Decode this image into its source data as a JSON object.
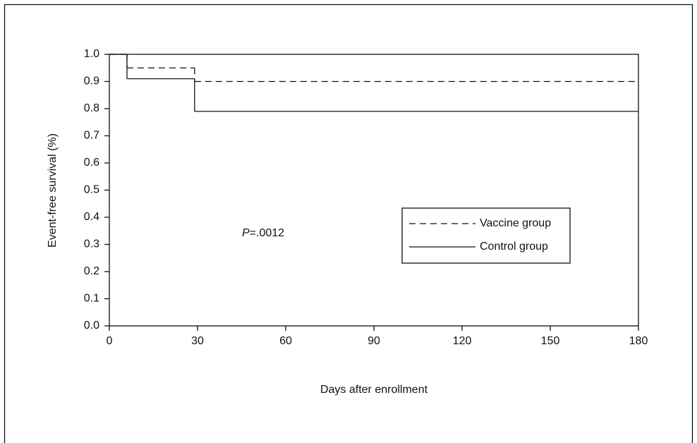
{
  "chart_data": {
    "type": "step",
    "x_label": "Days after enrollment",
    "y_label": "Event-free survival (%)",
    "annotation": {
      "italic": "P",
      "text": "=.0012"
    },
    "x": [
      0,
      6,
      29
    ],
    "series": [
      {
        "name": "Vaccine group",
        "color": "#000000",
        "dash": "dashed",
        "values": [
          1.0,
          0.95,
          0.9
        ]
      },
      {
        "name": "Control group",
        "color": "#000000",
        "dash": "solid",
        "values": [
          1.0,
          0.91,
          0.79
        ]
      }
    ],
    "xlim": [
      0,
      180
    ],
    "xticks": [
      0,
      30,
      60,
      90,
      120,
      150,
      180
    ],
    "ylim": [
      0,
      1
    ],
    "yticks": [
      {
        "value": 0,
        "label": "0.0"
      },
      0.1,
      0.2,
      0.3,
      0.4,
      0.5,
      0.6,
      0.7,
      0.8,
      0.9,
      {
        "value": 1,
        "label": "1.0"
      }
    ],
    "grid": false,
    "legend": "lower-right"
  }
}
